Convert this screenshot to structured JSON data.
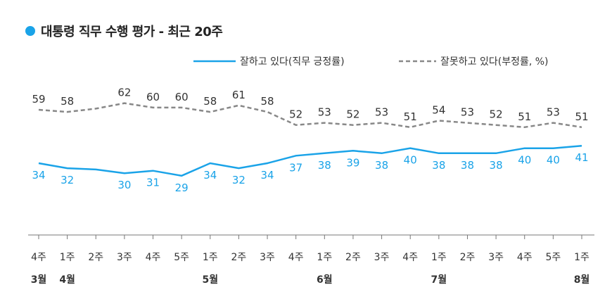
{
  "title": "대통령 직무 수행 평가 - 최근 20주",
  "colors": {
    "positive": "#1aa3e8",
    "negative": "#888888",
    "axis": "#777777"
  },
  "legend": {
    "positive": "잘하고 있다(직무 긍정률)",
    "negative": "잘못하고 있다(부정률, %)"
  },
  "chart_data": {
    "type": "line",
    "categories": [
      "4주",
      "1주",
      "2주",
      "3주",
      "4주",
      "5주",
      "1주",
      "2주",
      "3주",
      "4주",
      "1주",
      "2주",
      "3주",
      "4주",
      "1주",
      "2주",
      "3주",
      "4주",
      "5주",
      "1주"
    ],
    "months": [
      {
        "index": 0,
        "label": "3월"
      },
      {
        "index": 1,
        "label": "4월"
      },
      {
        "index": 6,
        "label": "5월"
      },
      {
        "index": 10,
        "label": "6월"
      },
      {
        "index": 14,
        "label": "7월"
      },
      {
        "index": 19,
        "label": "8월"
      }
    ],
    "series": [
      {
        "name": "잘하고 있다(직무 긍정률)",
        "style": "solid",
        "values": [
          34,
          32,
          null,
          30,
          31,
          29,
          34,
          32,
          34,
          37,
          38,
          39,
          38,
          40,
          38,
          38,
          38,
          40,
          40,
          41
        ]
      },
      {
        "name": "잘못하고 있다(부정률, %)",
        "style": "dashed",
        "values": [
          59,
          58,
          null,
          62,
          60,
          60,
          58,
          61,
          58,
          52,
          53,
          52,
          53,
          51,
          54,
          53,
          52,
          51,
          53,
          51
        ]
      }
    ],
    "line_values": {
      "positive": [
        34,
        32,
        31.5,
        30,
        31,
        29,
        34,
        32,
        34,
        37,
        38,
        39,
        38,
        40,
        38,
        38,
        38,
        40,
        40,
        41
      ],
      "negative": [
        59,
        58,
        59.5,
        62,
        60,
        60,
        58,
        61,
        58,
        52,
        53,
        52,
        53,
        51,
        54,
        53,
        52,
        51,
        53,
        51
      ]
    }
  }
}
